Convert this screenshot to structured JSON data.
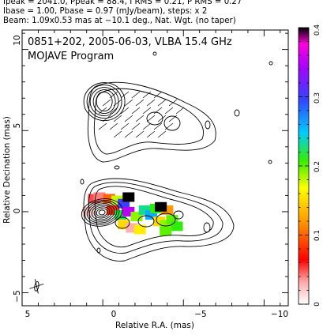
{
  "header": {
    "line1": "Ipeak = 2041.0, Ppeak = 88.4, I RMS = 0.21, P RMS = 0.27",
    "line2": "Ibase = 1.00, Pbase = 0.97 (mJy/beam), steps: x 2",
    "line3": "Beam: 1.09x0.53 mas at −10.1 deg., Nat. Wgt. (no taper)"
  },
  "chart_data": {
    "type": "contour",
    "title": "0851+202, 2005-06-03, VLBA 15.4 GHz",
    "subtitle": "MOJAVE Program",
    "xlabel": "Relative R.A. (mas)",
    "ylabel": "Relative Decination (mas)",
    "xlim": [
      5,
      -11.5
    ],
    "ylim": [
      -5.8,
      11.2
    ],
    "x_ticks": [
      5,
      0,
      -5,
      -10
    ],
    "y_ticks": [
      -5,
      0,
      5,
      10
    ],
    "x_tick_labels": [
      "5",
      "0",
      "−5",
      "−10"
    ],
    "y_tick_labels": [
      "−5",
      "0",
      "5",
      "10"
    ],
    "colorbar": {
      "range": [
        0,
        0.4
      ],
      "ticks": [
        0,
        0.1,
        0.2,
        0.3,
        0.4
      ],
      "tick_labels": [
        "0",
        "0.1",
        "0.2",
        "0.3",
        "0.4"
      ]
    },
    "intensity_peak_mJy_per_beam": 2041.0,
    "polarized_peak_mJy_per_beam": 88.4,
    "i_rms": 0.21,
    "p_rms": 0.27,
    "contour_base_mJy_per_beam": 1.0,
    "pol_base_mJy_per_beam": 0.97,
    "contour_step_factor": 2,
    "beam": {
      "major_mas": 1.09,
      "minor_mas": 0.53,
      "pa_deg": -10.1
    },
    "core_position_mas": [
      0,
      0
    ],
    "polarization_patch": [
      {
        "x": 0.9,
        "y": 0.0,
        "frac": 0.02
      },
      {
        "x": 0.55,
        "y": 0.8,
        "frac": 0.05
      },
      {
        "x": 0.2,
        "y": 0.9,
        "frac": 0.04
      },
      {
        "x": -0.4,
        "y": 0.8,
        "frac": 0.1
      },
      {
        "x": -0.9,
        "y": 0.7,
        "frac": 0.18
      },
      {
        "x": -1.3,
        "y": 0.5,
        "frac": 0.3
      },
      {
        "x": -1.6,
        "y": 0.9,
        "frac": 0.4
      },
      {
        "x": -0.6,
        "y": 0.1,
        "frac": 0.08
      },
      {
        "x": -1.1,
        "y": -0.2,
        "frac": 0.22
      },
      {
        "x": -1.6,
        "y": 0.0,
        "frac": 0.35
      },
      {
        "x": -1.3,
        "y": -0.8,
        "frac": 0.15
      },
      {
        "x": -1.8,
        "y": -1.0,
        "frac": 0.03
      },
      {
        "x": -2.1,
        "y": -0.3,
        "frac": 0.19
      },
      {
        "x": -2.6,
        "y": 0.1,
        "frac": 0.23
      },
      {
        "x": -3.0,
        "y": -0.2,
        "frac": 0.26
      },
      {
        "x": -3.3,
        "y": 0.2,
        "frac": 0.21
      },
      {
        "x": -3.5,
        "y": -0.6,
        "frac": 0.15
      },
      {
        "x": -3.9,
        "y": -0.8,
        "frac": 0.19
      },
      {
        "x": -4.3,
        "y": -0.5,
        "frac": 0.2
      },
      {
        "x": -4.0,
        "y": 0.1,
        "frac": 0.12
      },
      {
        "x": -4.6,
        "y": -0.9,
        "frac": 0.21
      },
      {
        "x": -3.6,
        "y": 0.3,
        "frac": 0.4
      },
      {
        "x": -3.9,
        "y": -1.2,
        "frac": 0.2
      },
      {
        "x": -2.3,
        "y": -1.1,
        "frac": 0.16
      }
    ]
  }
}
